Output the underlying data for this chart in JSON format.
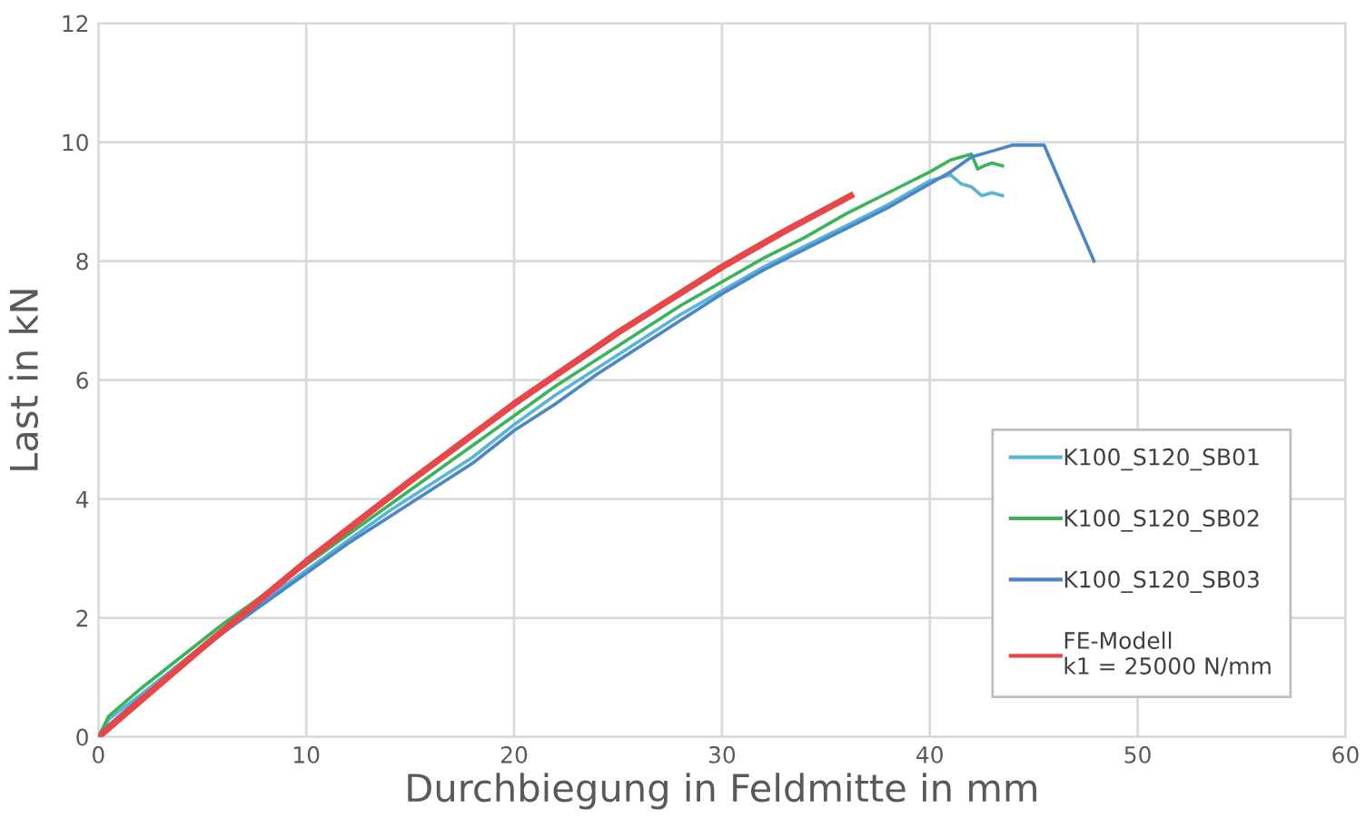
{
  "chart_data": {
    "type": "line",
    "xlabel": "Durchbiegung in Feldmitte in mm",
    "ylabel": "Last in kN",
    "xlim": [
      0,
      60
    ],
    "ylim": [
      0,
      12
    ],
    "xticks": [
      0,
      10,
      20,
      30,
      40,
      50,
      60
    ],
    "yticks": [
      0,
      2,
      4,
      6,
      8,
      10,
      12
    ],
    "grid": true,
    "legend": "bottom right",
    "marker": "none",
    "line_style": "solid",
    "series": [
      {
        "name": "K100_S120_SB01",
        "color": "#5bb4d8",
        "x": [
          0,
          0.5,
          2,
          4,
          6,
          8,
          10,
          12,
          14,
          16,
          18,
          20,
          22,
          24,
          26,
          28,
          30,
          32,
          34,
          36,
          38,
          40,
          41,
          41.5,
          42,
          42.5,
          43,
          43.5
        ],
        "values": [
          0,
          0.3,
          0.7,
          1.25,
          1.8,
          2.3,
          2.8,
          3.3,
          3.8,
          4.25,
          4.7,
          5.25,
          5.75,
          6.2,
          6.65,
          7.1,
          7.5,
          7.9,
          8.25,
          8.6,
          8.95,
          9.35,
          9.45,
          9.3,
          9.25,
          9.1,
          9.15,
          9.1
        ]
      },
      {
        "name": "K100_S120_SB02",
        "color": "#3cb35a",
        "x": [
          0,
          0.5,
          2,
          4,
          6,
          8,
          10,
          12,
          14,
          16,
          18,
          20,
          22,
          24,
          26,
          28,
          30,
          32,
          34,
          36,
          38,
          40,
          41,
          42,
          42.3,
          42.6,
          43,
          43.5
        ],
        "values": [
          0,
          0.35,
          0.8,
          1.35,
          1.9,
          2.4,
          2.9,
          3.4,
          3.9,
          4.4,
          4.9,
          5.4,
          5.9,
          6.35,
          6.8,
          7.25,
          7.65,
          8.05,
          8.4,
          8.8,
          9.15,
          9.5,
          9.7,
          9.8,
          9.55,
          9.6,
          9.65,
          9.6
        ]
      },
      {
        "name": "K100_S120_SB03",
        "color": "#4a86c8",
        "x": [
          0,
          0.5,
          2,
          4,
          6,
          8,
          10,
          12,
          14,
          16,
          18,
          20,
          22,
          24,
          26,
          28,
          30,
          32,
          34,
          36,
          38,
          40,
          41,
          42,
          43,
          44,
          45,
          45.5,
          47.9
        ],
        "values": [
          0,
          0.2,
          0.65,
          1.2,
          1.75,
          2.25,
          2.75,
          3.25,
          3.7,
          4.15,
          4.6,
          5.15,
          5.6,
          6.1,
          6.55,
          7.0,
          7.45,
          7.85,
          8.2,
          8.55,
          8.9,
          9.3,
          9.5,
          9.75,
          9.85,
          9.95,
          9.95,
          9.95,
          8.0
        ]
      },
      {
        "name": "FE-Modell\nk1 = 25000 N/mm",
        "color": "#e8474a",
        "x": [
          0,
          5,
          10,
          15,
          20,
          25,
          30,
          33,
          36.2
        ],
        "values": [
          0,
          1.5,
          2.95,
          4.3,
          5.6,
          6.8,
          7.9,
          8.5,
          9.1
        ]
      }
    ]
  }
}
